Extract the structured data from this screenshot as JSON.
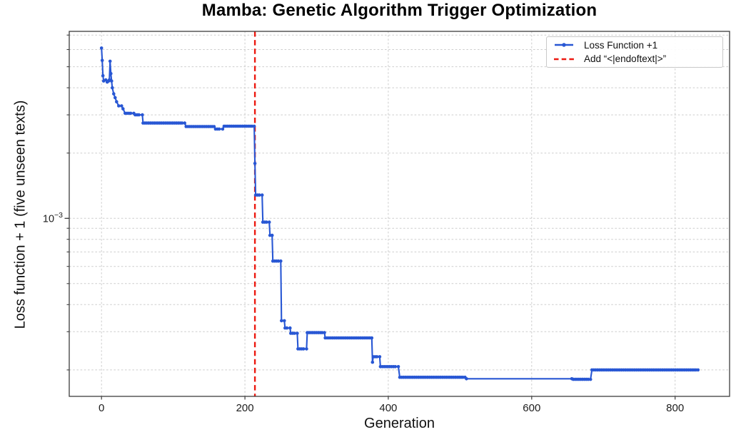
{
  "chart_data": {
    "type": "line",
    "title": "Mamba: Genetic Algorithm Trigger Optimization",
    "xlabel": "Generation",
    "ylabel": "Loss function + 1 (five unseen texts)",
    "y_scale": "log",
    "grid": true,
    "xlim": [
      -45,
      876
    ],
    "ylim": [
      0.000151,
      0.00728
    ],
    "x_ticks": [
      0,
      200,
      400,
      600,
      800
    ],
    "y_major_tick": {
      "value": 0.001,
      "label_base": "10",
      "label_exp": "−3"
    },
    "y_minor_gridlines": [
      0.007,
      0.006,
      0.005,
      0.004,
      0.003,
      0.002,
      0.001,
      0.0009,
      0.0008,
      0.0007,
      0.0006,
      0.0005,
      0.0004,
      0.0003,
      0.0002
    ],
    "vline": {
      "x": 214,
      "color": "#ec1910",
      "style": "dashed",
      "label": "Add “<|endoftext|>”"
    },
    "legend": {
      "position": "upper right",
      "entries": [
        "Loss Function +1",
        "Add “<|endoftext|>”"
      ]
    },
    "series": [
      {
        "name": "Loss Function +1",
        "color": "#2857d4",
        "marker": "circle",
        "sparse_x_ranges": [
          [
            562,
            656
          ]
        ],
        "points": [
          [
            0,
            0.0061
          ],
          [
            1,
            0.00535
          ],
          [
            2,
            0.00455
          ],
          [
            3,
            0.0043
          ],
          [
            6,
            0.00435
          ],
          [
            8,
            0.00425
          ],
          [
            10,
            0.0043
          ],
          [
            11,
            0.00435
          ],
          [
            12,
            0.0053
          ],
          [
            13,
            0.00465
          ],
          [
            14,
            0.0043
          ],
          [
            15,
            0.004
          ],
          [
            17,
            0.00375
          ],
          [
            19,
            0.0036
          ],
          [
            21,
            0.00345
          ],
          [
            24,
            0.0033
          ],
          [
            28,
            0.0033
          ],
          [
            30,
            0.0032
          ],
          [
            33,
            0.00305
          ],
          [
            45,
            0.00305
          ],
          [
            47,
            0.003
          ],
          [
            57,
            0.003
          ],
          [
            58,
            0.00275
          ],
          [
            116,
            0.00275
          ],
          [
            118,
            0.00265
          ],
          [
            157,
            0.00265
          ],
          [
            159,
            0.00258
          ],
          [
            169,
            0.00258
          ],
          [
            171,
            0.00266
          ],
          [
            213,
            0.00266
          ],
          [
            214,
            0.00179
          ],
          [
            215,
            0.00128
          ],
          [
            224,
            0.00128
          ],
          [
            225,
            0.00096
          ],
          [
            234,
            0.00096
          ],
          [
            235,
            0.000835
          ],
          [
            238,
            0.000835
          ],
          [
            239,
            0.000635
          ],
          [
            250,
            0.000635
          ],
          [
            251,
            0.000337
          ],
          [
            255,
            0.000337
          ],
          [
            256,
            0.000312
          ],
          [
            263,
            0.000312
          ],
          [
            264,
            0.000295
          ],
          [
            273,
            0.000295
          ],
          [
            274,
            0.00025
          ],
          [
            286,
            0.00025
          ],
          [
            287,
            0.000297
          ],
          [
            311,
            0.000297
          ],
          [
            312,
            0.000281
          ],
          [
            377,
            0.000281
          ],
          [
            378,
            0.000217
          ],
          [
            379,
            0.00023
          ],
          [
            388,
            0.00023
          ],
          [
            389,
            0.000207
          ],
          [
            414,
            0.000207
          ],
          [
            416,
            0.000185
          ],
          [
            507,
            0.000185
          ],
          [
            509,
            0.000182
          ],
          [
            656,
            0.000182
          ],
          [
            658,
            0.000181
          ],
          [
            682,
            0.000181
          ],
          [
            684,
            0.0002
          ],
          [
            832,
            0.0002
          ]
        ]
      }
    ]
  }
}
